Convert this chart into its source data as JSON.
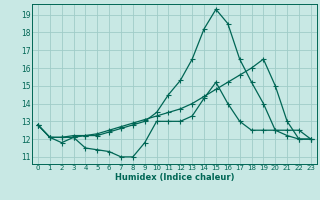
{
  "xlabel": "Humidex (Indice chaleur)",
  "bg_color": "#c8e8e4",
  "line_color": "#006655",
  "grid_color": "#a0ccc8",
  "xlim": [
    -0.5,
    23.5
  ],
  "ylim": [
    10.6,
    19.6
  ],
  "xticks": [
    0,
    1,
    2,
    3,
    4,
    5,
    6,
    7,
    8,
    9,
    10,
    11,
    12,
    13,
    14,
    15,
    16,
    17,
    18,
    19,
    20,
    21,
    22,
    23
  ],
  "yticks": [
    11,
    12,
    13,
    14,
    15,
    16,
    17,
    18,
    19
  ],
  "line1_x": [
    0,
    1,
    2,
    3,
    4,
    5,
    6,
    7,
    8,
    9,
    10,
    11,
    12,
    13,
    14,
    15,
    16,
    17,
    18,
    19,
    20,
    21,
    22,
    23
  ],
  "line1_y": [
    12.8,
    12.1,
    11.8,
    12.1,
    11.5,
    11.4,
    11.3,
    11.0,
    11.0,
    11.8,
    13.0,
    13.0,
    13.0,
    13.3,
    14.3,
    15.2,
    14.0,
    13.0,
    12.5,
    12.5,
    12.5,
    12.5,
    12.5,
    12.0
  ],
  "line2_x": [
    0,
    1,
    2,
    3,
    4,
    5,
    6,
    7,
    8,
    9,
    10,
    11,
    12,
    13,
    14,
    15,
    16,
    17,
    18,
    19,
    20,
    21,
    22,
    23
  ],
  "line2_y": [
    12.8,
    12.1,
    12.1,
    12.1,
    12.2,
    12.2,
    12.4,
    12.6,
    12.8,
    13.0,
    13.5,
    14.5,
    15.3,
    16.5,
    18.2,
    19.3,
    18.5,
    16.5,
    15.2,
    14.0,
    12.5,
    12.2,
    12.0,
    12.0
  ],
  "line3_x": [
    0,
    1,
    2,
    3,
    4,
    5,
    6,
    7,
    8,
    9,
    10,
    11,
    12,
    13,
    14,
    15,
    16,
    17,
    18,
    19,
    20,
    21,
    22,
    23
  ],
  "line3_y": [
    12.8,
    12.1,
    12.1,
    12.2,
    12.2,
    12.3,
    12.5,
    12.7,
    12.9,
    13.1,
    13.3,
    13.5,
    13.7,
    14.0,
    14.4,
    14.8,
    15.2,
    15.6,
    16.0,
    16.5,
    15.0,
    13.0,
    12.0,
    12.0
  ],
  "markersize": 2.0,
  "linewidth": 0.9
}
